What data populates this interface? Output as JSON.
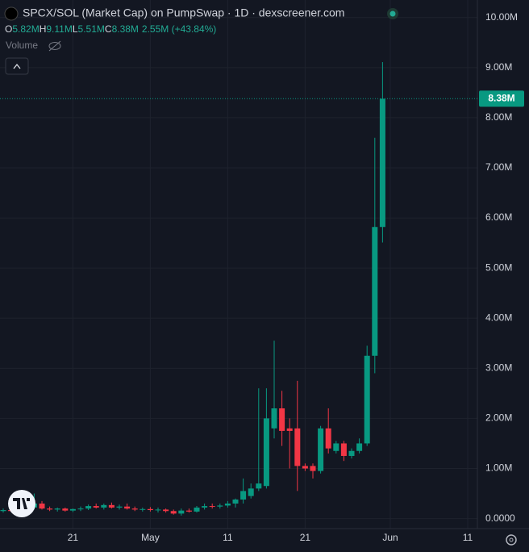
{
  "chart_data": {
    "type": "candlestick",
    "title": "SPCX/SOL (Market Cap) on PumpSwap · 1D · dexscreener.com",
    "ohlc": {
      "open_key": "O",
      "open": "5.82M",
      "high_key": "H",
      "high": "9.11M",
      "low_key": "L",
      "low": "5.51M",
      "close_key": "C",
      "close": "8.38M",
      "change": "2.55M (+43.84%)"
    },
    "volume_label": "Volume",
    "x": [
      "04-12",
      "04-13",
      "04-14",
      "04-15",
      "04-16",
      "04-17",
      "04-18",
      "04-19",
      "04-20",
      "04-21",
      "04-22",
      "04-23",
      "04-24",
      "04-25",
      "04-26",
      "04-27",
      "04-28",
      "04-29",
      "04-30",
      "05-01",
      "05-02",
      "05-03",
      "05-04",
      "05-05",
      "05-06",
      "05-07",
      "05-08",
      "05-09",
      "05-10",
      "05-11",
      "05-12",
      "05-13",
      "05-14",
      "05-15",
      "05-16",
      "05-17",
      "05-18",
      "05-19",
      "05-20",
      "05-21",
      "05-22",
      "05-23",
      "05-24",
      "05-25",
      "05-26",
      "05-27",
      "05-28",
      "05-29",
      "05-30",
      "05-31"
    ],
    "open": [
      0.15,
      0.17,
      0.15,
      0.2,
      0.22,
      0.3,
      0.2,
      0.18,
      0.2,
      0.16,
      0.19,
      0.2,
      0.25,
      0.22,
      0.27,
      0.22,
      0.24,
      0.2,
      0.18,
      0.19,
      0.17,
      0.18,
      0.15,
      0.1,
      0.16,
      0.14,
      0.22,
      0.25,
      0.24,
      0.26,
      0.3,
      0.38,
      0.45,
      0.6,
      0.65,
      1.8,
      2.2,
      1.8,
      1.8,
      1.05,
      1.05,
      0.95,
      1.8,
      1.35,
      1.5,
      1.25,
      1.35,
      1.5,
      3.25,
      5.82
    ],
    "high": [
      0.2,
      0.2,
      0.22,
      0.25,
      0.5,
      0.35,
      0.24,
      0.22,
      0.22,
      0.2,
      0.24,
      0.28,
      0.3,
      0.3,
      0.32,
      0.28,
      0.3,
      0.24,
      0.22,
      0.23,
      0.22,
      0.2,
      0.18,
      0.2,
      0.2,
      0.25,
      0.3,
      0.3,
      0.3,
      0.35,
      0.4,
      0.8,
      0.7,
      2.6,
      2.6,
      3.55,
      2.55,
      2.0,
      2.75,
      1.1,
      1.1,
      1.85,
      2.2,
      1.55,
      1.55,
      1.4,
      1.6,
      3.45,
      7.6,
      9.11
    ],
    "low": [
      0.12,
      0.14,
      0.13,
      0.15,
      0.18,
      0.18,
      0.15,
      0.14,
      0.14,
      0.13,
      0.15,
      0.17,
      0.2,
      0.18,
      0.2,
      0.18,
      0.18,
      0.15,
      0.14,
      0.14,
      0.12,
      0.12,
      0.08,
      0.06,
      0.12,
      0.12,
      0.18,
      0.2,
      0.2,
      0.22,
      0.22,
      0.3,
      0.4,
      0.55,
      0.6,
      1.6,
      1.45,
      1.0,
      0.55,
      0.95,
      0.8,
      0.9,
      1.3,
      1.3,
      1.15,
      1.2,
      1.3,
      1.45,
      2.9,
      5.51
    ],
    "close": [
      0.17,
      0.15,
      0.2,
      0.22,
      0.3,
      0.2,
      0.18,
      0.2,
      0.16,
      0.19,
      0.2,
      0.25,
      0.22,
      0.27,
      0.22,
      0.24,
      0.2,
      0.18,
      0.19,
      0.17,
      0.18,
      0.15,
      0.1,
      0.16,
      0.14,
      0.22,
      0.25,
      0.24,
      0.26,
      0.3,
      0.38,
      0.55,
      0.6,
      0.7,
      2.0,
      2.2,
      1.75,
      1.75,
      1.05,
      1.0,
      0.95,
      1.8,
      1.4,
      1.5,
      1.25,
      1.35,
      1.5,
      3.25,
      5.82,
      8.38
    ],
    "up_color": "#089981",
    "down_color": "#f23645",
    "ylim": [
      -0.2,
      10.35
    ],
    "yticks": [
      {
        "value": 0,
        "label": "0.0000"
      },
      {
        "value": 1,
        "label": "1.00M"
      },
      {
        "value": 2,
        "label": "2.00M"
      },
      {
        "value": 3,
        "label": "3.00M"
      },
      {
        "value": 4,
        "label": "4.00M"
      },
      {
        "value": 5,
        "label": "5.00M"
      },
      {
        "value": 6,
        "label": "6.00M"
      },
      {
        "value": 7,
        "label": "7.00M"
      },
      {
        "value": 8,
        "label": "8.00M"
      },
      {
        "value": 9,
        "label": "9.00M"
      },
      {
        "value": 10,
        "label": "10.00M"
      }
    ],
    "xticks": [
      {
        "value": "04-21",
        "label": "21"
      },
      {
        "value": "05-01",
        "label": "May"
      },
      {
        "value": "05-11",
        "label": "11"
      },
      {
        "value": "05-21",
        "label": "21"
      },
      {
        "value": "06-01",
        "label": "Jun"
      },
      {
        "value": "06-11",
        "label": "11"
      }
    ],
    "grid": true
  }
}
